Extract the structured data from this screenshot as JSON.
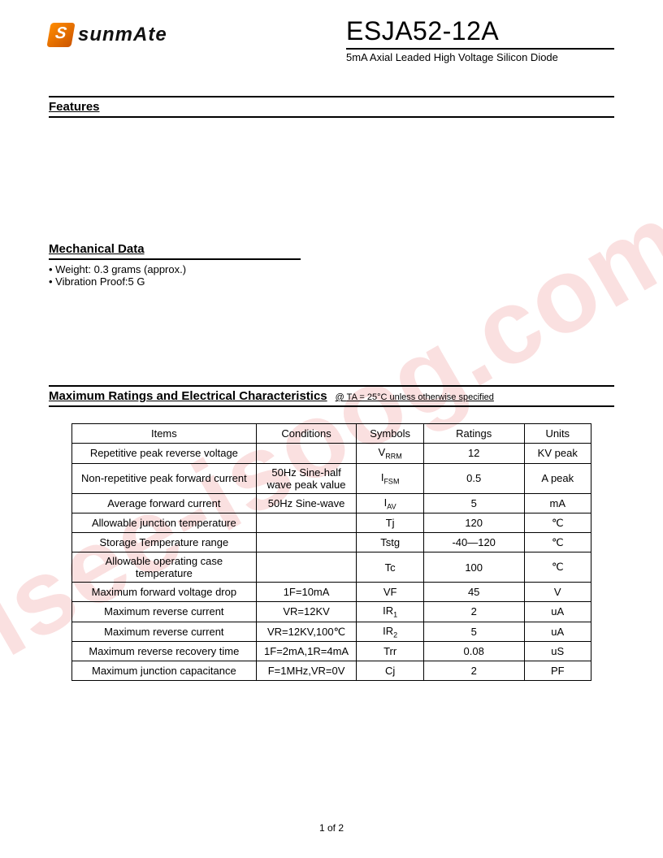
{
  "watermark": "isee-isoog.com",
  "logo": {
    "text": "sunmAte"
  },
  "header": {
    "part_number": "ESJA52-12A",
    "subtitle": "5mA Axial Leaded High Voltage Silicon Diode"
  },
  "sections": {
    "features_title": "Features",
    "mechanical_title": "Mechanical Data",
    "mechanical_items": [
      "Weight:  0.3 grams (approx.)",
      "Vibration Proof:5 G"
    ],
    "ratings_title": "Maximum Ratings and Electrical Characteristics",
    "ratings_note_prefix": "@ ",
    "ratings_note": "TA = 25°C unless otherwise specified"
  },
  "table": {
    "headers": {
      "items": "Items",
      "conditions": "Conditions",
      "symbols": "Symbols",
      "ratings": "Ratings",
      "units": "Units"
    },
    "rows": [
      {
        "item": "Repetitive peak reverse voltage",
        "cond": "",
        "sym": "V",
        "sub": "RRM",
        "rating": "12",
        "unit": "KV peak"
      },
      {
        "item": "Non-repetitive peak forward current",
        "cond": "50Hz Sine-half wave peak value",
        "sym": "I",
        "sub": "FSM",
        "rating": "0.5",
        "unit": "A peak"
      },
      {
        "item": "Average forward current",
        "cond": "50Hz Sine-wave",
        "sym": "I",
        "sub": "AV",
        "rating": "5",
        "unit": "mA"
      },
      {
        "item": "Allowable junction temperature",
        "cond": "",
        "sym": "Tj",
        "sub": "",
        "rating": "120",
        "unit": "℃"
      },
      {
        "item": "Storage Temperature range",
        "cond": "",
        "sym": "Tstg",
        "sub": "",
        "rating": "-40—120",
        "unit": "℃"
      },
      {
        "item": "Allowable operating case temperature",
        "cond": "",
        "sym": "Tc",
        "sub": "",
        "rating": "100",
        "unit": "℃"
      },
      {
        "item": "Maximum forward voltage drop",
        "cond": "1F=10mA",
        "sym": "VF",
        "sub": "",
        "rating": "45",
        "unit": "V"
      },
      {
        "item": "Maximum reverse current",
        "cond": "VR=12KV",
        "sym": "IR",
        "sub": "1",
        "rating": "2",
        "unit": "uA"
      },
      {
        "item": "Maximum reverse current",
        "cond": "VR=12KV,100℃",
        "sym": "IR",
        "sub": "2",
        "rating": "5",
        "unit": "uA"
      },
      {
        "item": "Maximum reverse recovery time",
        "cond": "1F=2mA,1R=4mA",
        "sym": "Trr",
        "sub": "",
        "rating": "0.08",
        "unit": "uS"
      },
      {
        "item": "Maximum junction capacitance",
        "cond": "F=1MHz,VR=0V",
        "sym": "Cj",
        "sub": "",
        "rating": "2",
        "unit": "PF"
      }
    ]
  },
  "footer": "1 of 2"
}
